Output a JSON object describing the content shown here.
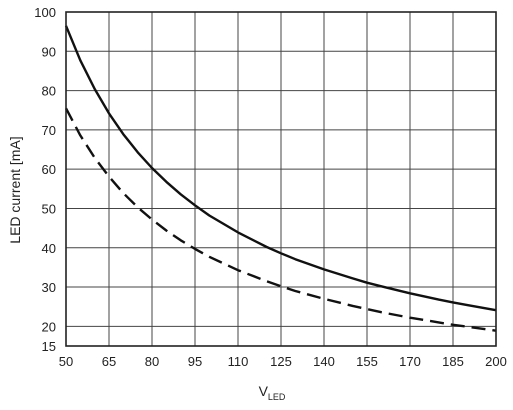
{
  "chart_data": {
    "type": "line",
    "title": "",
    "xlabel_main": "V",
    "xlabel_sub": "LED",
    "ylabel": "LED current [mA]",
    "xlim": [
      50,
      200
    ],
    "ylim": [
      15,
      100
    ],
    "x_ticks": [
      50,
      65,
      80,
      95,
      110,
      125,
      140,
      155,
      170,
      185,
      200
    ],
    "y_ticks": [
      15,
      20,
      30,
      40,
      50,
      60,
      70,
      80,
      90,
      100
    ],
    "x_tick_labels": [
      "50",
      "65",
      "80",
      "95",
      "110",
      "125",
      "140",
      "155",
      "170",
      "185",
      "200"
    ],
    "y_tick_labels": [
      "15",
      "20",
      "30",
      "40",
      "50",
      "60",
      "70",
      "80",
      "90",
      "100"
    ],
    "grid": true,
    "series": [
      {
        "style": "solid",
        "x": [
          50,
          55,
          60,
          65,
          70,
          75,
          80,
          85,
          90,
          95,
          100,
          110,
          120,
          125,
          130,
          140,
          150,
          155,
          160,
          170,
          180,
          185,
          190,
          200
        ],
        "y": [
          96.5,
          87.7,
          80.4,
          74.2,
          68.9,
          64.3,
          60.3,
          56.8,
          53.6,
          50.8,
          48.2,
          43.9,
          40.2,
          38.6,
          37.1,
          34.5,
          32.2,
          31.1,
          30.2,
          28.4,
          26.8,
          26.1,
          25.4,
          24.1
        ]
      },
      {
        "style": "dashed",
        "x": [
          50,
          55,
          60,
          65,
          70,
          75,
          80,
          85,
          90,
          95,
          100,
          110,
          120,
          125,
          130,
          140,
          150,
          155,
          160,
          170,
          180,
          185,
          190,
          200
        ],
        "y": [
          75.5,
          68.6,
          62.9,
          58.1,
          53.9,
          50.3,
          47.2,
          44.4,
          41.9,
          39.7,
          37.7,
          34.3,
          31.5,
          30.2,
          29.0,
          27.0,
          25.2,
          24.4,
          23.6,
          22.2,
          21.0,
          20.4,
          19.9,
          18.9
        ]
      }
    ]
  }
}
